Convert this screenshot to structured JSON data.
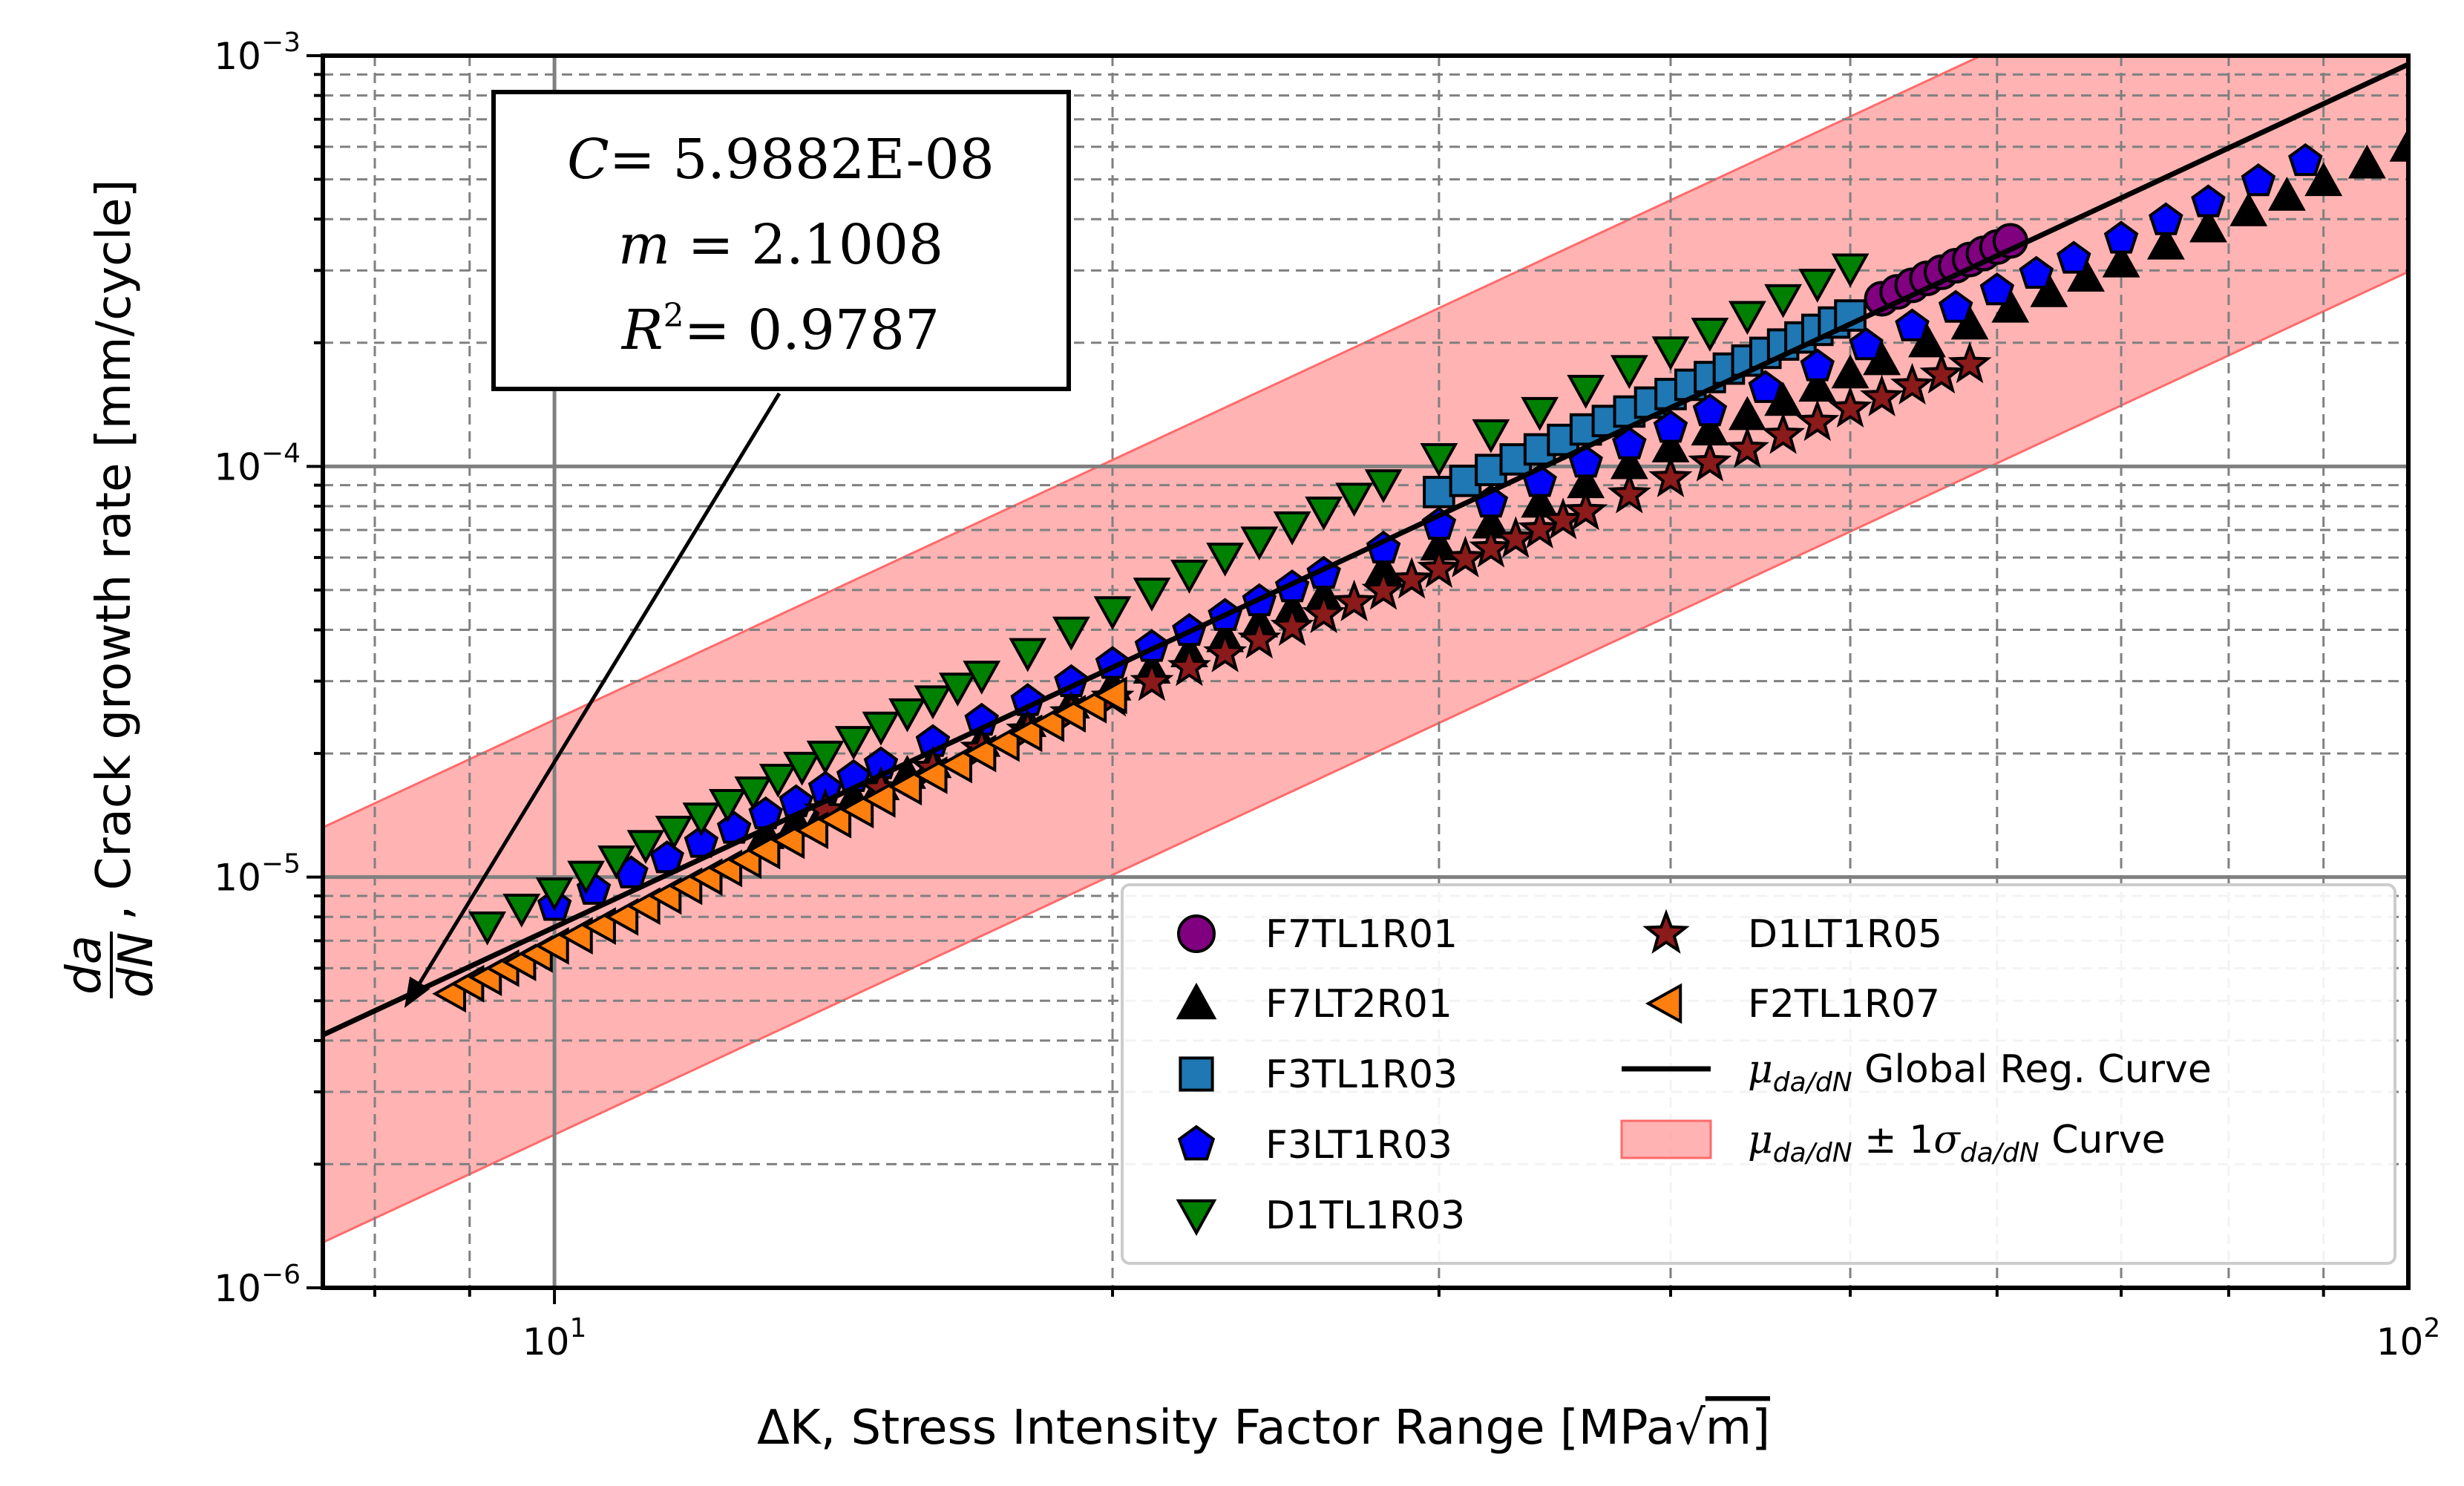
{
  "chart_data": {
    "type": "scatter",
    "xscale": "log",
    "yscale": "log",
    "xlim": [
      7.5,
      100
    ],
    "ylim": [
      1e-06,
      0.001
    ],
    "grid": true,
    "xlabel": {
      "symbol": "ΔK",
      "text": ", Stress Intensity Factor Range [MPa",
      "unit_tail": "m]"
    },
    "ylabel": {
      "frac_num": "da",
      "frac_den": "dN",
      "text": ", Crack growth rate [mm/cycle]"
    },
    "xticks": [
      {
        "value": 10,
        "label": "10",
        "exp": "1"
      },
      {
        "value": 100,
        "label": "10",
        "exp": "2"
      }
    ],
    "yticks": [
      {
        "value": 1e-06,
        "label": "10",
        "exp": "−6"
      },
      {
        "value": 1e-05,
        "label": "10",
        "exp": "−5"
      },
      {
        "value": 0.0001,
        "label": "10",
        "exp": "−4"
      },
      {
        "value": 0.001,
        "label": "10",
        "exp": "−3"
      }
    ],
    "annotation": {
      "line1_var": "C",
      "line1_text": "= 5.9882E-08",
      "line2_var": "m",
      "line2_text": " = 2.1008",
      "line3_var": "R",
      "line3_sup": "2",
      "line3_text": "= 0.9787",
      "arrow_to": {
        "x": 8.3,
        "y": 4.8e-06
      }
    },
    "regression": {
      "C": 5.9882e-08,
      "m": 2.1008,
      "band_factor": 3.2
    },
    "legend_position": "lower-right",
    "legend": {
      "regression_label_sub": "da/dN",
      "regression_label_text": " Global Reg. Curve",
      "band_label_sub": "da/dN",
      "band_label_text": " ± 1",
      "band_label_sigma_sub": "da/dN",
      "band_label_tail": " Curve"
    },
    "series": [
      {
        "name": "F7TL1R01",
        "marker": "circle",
        "color": "#800080",
        "x": [
          52,
          53,
          54,
          55,
          56,
          57,
          58,
          59,
          60,
          61
        ],
        "y": [
          0.000256,
          0.000266,
          0.000276,
          0.000287,
          0.000297,
          0.000308,
          0.000319,
          0.00033,
          0.000342,
          0.000354
        ]
      },
      {
        "name": "F7LT2R01",
        "marker": "triangle-up",
        "color": "#000000",
        "x": [
          13.0,
          13.5,
          14.0,
          14.5,
          15.0,
          15.5,
          16.0,
          17.0,
          18.0,
          19.0,
          20.0,
          21.0,
          22.0,
          23.0,
          24.0,
          25.0,
          26.0,
          28.0,
          30.0,
          32.0,
          34.0,
          36.0,
          38.0,
          40.0,
          42.0,
          44.0,
          46.0,
          48.0,
          50.0,
          52.0,
          55.0,
          58.0,
          61.0,
          64.0,
          67.0,
          70.0,
          74.0,
          78.0,
          82.0,
          86.0,
          90.0,
          95.0,
          100.0
        ],
        "y": [
          1.27e-05,
          1.36e-05,
          1.46e-05,
          1.56e-05,
          1.67e-05,
          1.78e-05,
          1.89e-05,
          2.13e-05,
          2.38e-05,
          2.64e-05,
          2.92e-05,
          3.21e-05,
          3.52e-05,
          3.83e-05,
          4.16e-05,
          4.5e-05,
          4.85e-05,
          5.6e-05,
          6.4e-05,
          7.24e-05,
          8.14e-05,
          9.08e-05,
          0.000101,
          0.000111,
          0.000122,
          0.000133,
          0.000144,
          0.000156,
          0.000168,
          0.000181,
          0.0002,
          0.000221,
          0.000243,
          0.000265,
          0.000289,
          0.000313,
          0.000346,
          0.000381,
          0.000417,
          0.000455,
          0.000494,
          0.000545,
          0.000599
        ]
      },
      {
        "name": "F3TL1R03",
        "marker": "square",
        "color": "#1f77b4",
        "x": [
          30,
          31,
          32,
          33,
          34,
          35,
          36,
          37,
          38,
          39,
          40,
          41,
          42,
          43,
          44,
          45,
          46,
          47,
          48,
          49,
          50
        ],
        "y": [
          8.66e-05,
          9.22e-05,
          9.8e-05,
          0.000104,
          0.00011,
          0.000116,
          0.000123,
          0.000129,
          0.000136,
          0.000143,
          0.00015,
          0.000158,
          0.000165,
          0.000173,
          0.000181,
          0.000189,
          0.000198,
          0.000206,
          0.000215,
          0.000224,
          0.000233
        ]
      },
      {
        "name": "F3LT1R03",
        "marker": "pentagon",
        "color": "#0000ff",
        "x": [
          10.0,
          10.5,
          11.0,
          11.5,
          12.0,
          12.5,
          13.0,
          13.5,
          14.0,
          14.5,
          15.0,
          16.0,
          17.0,
          18.0,
          19.0,
          20.0,
          21.0,
          22.0,
          23.0,
          24.0,
          25.0,
          26.0,
          28.0,
          30.0,
          32.0,
          34.0,
          36.0,
          38.0,
          40.0,
          42.0,
          45.0,
          48.0,
          51.0,
          54.0,
          57.0,
          60.0,
          63.0,
          66.0,
          70.0,
          74.0,
          78.0,
          83.0,
          88.0
        ],
        "y": [
          8.5e-06,
          9.3e-06,
          1.02e-05,
          1.11e-05,
          1.21e-05,
          1.31e-05,
          1.42e-05,
          1.52e-05,
          1.64e-05,
          1.75e-05,
          1.88e-05,
          2.13e-05,
          2.4e-05,
          2.68e-05,
          2.98e-05,
          3.3e-05,
          3.63e-05,
          3.97e-05,
          4.32e-05,
          4.69e-05,
          5.07e-05,
          5.47e-05,
          6.3e-05,
          7.2e-05,
          8.15e-05,
          9.15e-05,
          0.000102,
          0.000113,
          0.000124,
          0.000136,
          0.000155,
          0.000175,
          0.000197,
          0.000219,
          0.000243,
          0.000268,
          0.000294,
          0.00032,
          0.000358,
          0.000397,
          0.000439,
          0.000494,
          0.000553
        ]
      },
      {
        "name": "D1TL1R03",
        "marker": "triangle-down",
        "color": "#008000",
        "x": [
          9.2,
          9.6,
          10.0,
          10.4,
          10.8,
          11.2,
          11.6,
          12.0,
          12.4,
          12.8,
          13.2,
          13.6,
          14.0,
          14.5,
          15.0,
          15.5,
          16.0,
          16.5,
          17.0,
          18.0,
          19.0,
          20.0,
          21.0,
          22.0,
          23.0,
          24.0,
          25.0,
          26.0,
          27.0,
          28.0,
          30.0,
          32.0,
          34.0,
          36.0,
          38.0,
          40.0,
          42.0,
          44.0,
          46.0,
          48.0,
          50.0
        ],
        "y": [
          7.6e-06,
          8.4e-06,
          9.2e-06,
          1.01e-05,
          1.1e-05,
          1.2e-05,
          1.3e-05,
          1.4e-05,
          1.51e-05,
          1.62e-05,
          1.74e-05,
          1.86e-05,
          1.98e-05,
          2.15e-05,
          2.33e-05,
          2.51e-05,
          2.7e-05,
          2.9e-05,
          3.1e-05,
          3.52e-05,
          3.97e-05,
          4.45e-05,
          4.94e-05,
          5.46e-05,
          6.01e-05,
          6.58e-05,
          7.16e-05,
          7.78e-05,
          8.41e-05,
          9.07e-05,
          0.000105,
          0.00012,
          0.000136,
          0.000154,
          0.000172,
          0.000191,
          0.000212,
          0.000233,
          0.000256,
          0.000279,
          0.000304
        ]
      },
      {
        "name": "D1LT1R05",
        "marker": "star",
        "color": "#8b1a1a",
        "x": [
          14.0,
          15.0,
          16.0,
          17.0,
          18.0,
          19.0,
          20.0,
          21.0,
          22.0,
          23.0,
          24.0,
          25.0,
          26.0,
          27.0,
          28.0,
          29.0,
          30.0,
          31.0,
          32.0,
          33.0,
          34.0,
          35.0,
          36.0,
          38.0,
          40.0,
          42.0,
          44.0,
          46.0,
          48.0,
          50.0,
          52.0,
          54.0,
          56.0,
          58.0
        ],
        "y": [
          1.45e-05,
          1.64e-05,
          1.84e-05,
          2.05e-05,
          2.27e-05,
          2.5e-05,
          2.73e-05,
          2.98e-05,
          3.24e-05,
          3.5e-05,
          3.78e-05,
          4.06e-05,
          4.36e-05,
          4.66e-05,
          4.97e-05,
          5.29e-05,
          5.62e-05,
          5.96e-05,
          6.3e-05,
          6.65e-05,
          7.01e-05,
          7.38e-05,
          7.76e-05,
          8.53e-05,
          9.34e-05,
          0.000102,
          0.00011,
          0.000119,
          0.000128,
          0.000138,
          0.000147,
          0.000157,
          0.000167,
          0.000177
        ]
      },
      {
        "name": "F2TL1R07",
        "marker": "triangle-left",
        "color": "#ff7f0e",
        "x": [
          8.8,
          9.0,
          9.2,
          9.4,
          9.6,
          9.8,
          10.0,
          10.3,
          10.6,
          10.9,
          11.2,
          11.5,
          11.8,
          12.1,
          12.4,
          12.7,
          13.0,
          13.4,
          13.8,
          14.2,
          14.6,
          15.0,
          15.5,
          16.0,
          16.5,
          17.0,
          17.5,
          18.0,
          18.5,
          19.0,
          19.5,
          20.0
        ],
        "y": [
          5.2e-06,
          5.5e-06,
          5.7e-06,
          6e-06,
          6.2e-06,
          6.5e-06,
          6.8e-06,
          7.2e-06,
          7.6e-06,
          8e-06,
          8.5e-06,
          9e-06,
          9.5e-06,
          1e-05,
          1.05e-05,
          1.1e-05,
          1.16e-05,
          1.23e-05,
          1.3e-05,
          1.38e-05,
          1.46e-05,
          1.55e-05,
          1.66e-05,
          1.77e-05,
          1.88e-05,
          2e-05,
          2.12e-05,
          2.24e-05,
          2.37e-05,
          2.5e-05,
          2.63e-05,
          2.77e-05
        ]
      }
    ]
  }
}
